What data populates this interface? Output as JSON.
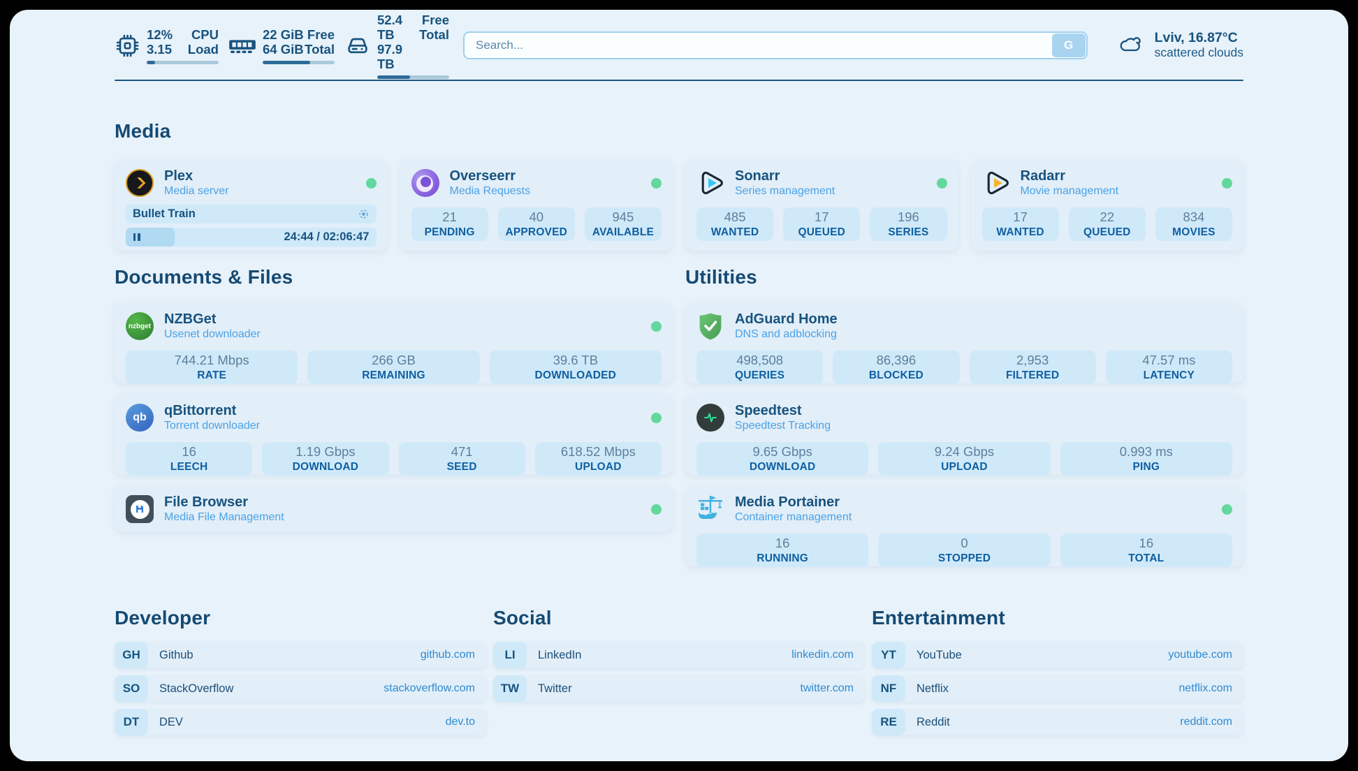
{
  "colors": {
    "navy": "#17537e",
    "subtitle_blue": "#4aa2e6",
    "link_blue": "#2f8ad0",
    "label_blue": "#0f5fa0",
    "status_online": "#62d89c",
    "tile_bg": "#cfe9f9",
    "card_bg": "#e2eef8",
    "page_bg": "#e8f2fa"
  },
  "topbar": {
    "cpu": {
      "icon": "cpu-chip-icon",
      "value1": "12%",
      "value2": "3.15",
      "label1": "CPU",
      "label2": "Load",
      "progress_pct": 12
    },
    "memory": {
      "icon": "ram-icon",
      "value1": "22 GiB",
      "value2": "64 GiB",
      "label1": "Free",
      "label2": "Total",
      "progress_pct": 66
    },
    "disk": {
      "icon": "disk-icon",
      "value1": "52.4 TB",
      "value2": "97.9 TB",
      "label1": "Free",
      "label2": "Total",
      "progress_pct": 46
    },
    "search": {
      "placeholder": "Search...",
      "button": "G"
    },
    "weather": {
      "icon": "cloud-icon",
      "location": "Lviv, 16.87°C",
      "condition": "scattered clouds"
    }
  },
  "media": {
    "heading": "Media",
    "plex": {
      "title": "Plex",
      "subtitle": "Media server",
      "online": true,
      "now_playing": {
        "title": "Bullet Train",
        "time": "24:44 / 02:06:47",
        "progress_pct": 19.5,
        "state": "paused"
      }
    },
    "overseerr": {
      "title": "Overseerr",
      "subtitle": "Media Requests",
      "online": true,
      "stats": [
        {
          "value": "21",
          "label": "PENDING"
        },
        {
          "value": "40",
          "label": "APPROVED"
        },
        {
          "value": "945",
          "label": "AVAILABLE"
        }
      ]
    },
    "sonarr": {
      "title": "Sonarr",
      "subtitle": "Series management",
      "online": true,
      "stats": [
        {
          "value": "485",
          "label": "WANTED"
        },
        {
          "value": "17",
          "label": "QUEUED"
        },
        {
          "value": "196",
          "label": "SERIES"
        }
      ]
    },
    "radarr": {
      "title": "Radarr",
      "subtitle": "Movie management",
      "online": true,
      "stats": [
        {
          "value": "17",
          "label": "WANTED"
        },
        {
          "value": "22",
          "label": "QUEUED"
        },
        {
          "value": "834",
          "label": "MOVIES"
        }
      ]
    }
  },
  "documents": {
    "heading": "Documents & Files",
    "nzbget": {
      "title": "NZBGet",
      "subtitle": "Usenet downloader",
      "icon_text": "nzbget",
      "online": true,
      "stats": [
        {
          "value": "744.21 Mbps",
          "label": "RATE"
        },
        {
          "value": "266 GB",
          "label": "REMAINING"
        },
        {
          "value": "39.6 TB",
          "label": "DOWNLOADED"
        }
      ]
    },
    "qbittorrent": {
      "title": "qBittorrent",
      "subtitle": "Torrent downloader",
      "icon_text": "qb",
      "online": true,
      "stats": [
        {
          "value": "16",
          "label": "LEECH"
        },
        {
          "value": "1.19 Gbps",
          "label": "DOWNLOAD"
        },
        {
          "value": "471",
          "label": "SEED"
        },
        {
          "value": "618.52 Mbps",
          "label": "UPLOAD"
        }
      ]
    },
    "filebrowser": {
      "title": "File Browser",
      "subtitle": "Media File Management",
      "online": true
    }
  },
  "utilities": {
    "heading": "Utilities",
    "adguard": {
      "title": "AdGuard Home",
      "subtitle": "DNS and adblocking",
      "stats": [
        {
          "value": "498,508",
          "label": "QUERIES"
        },
        {
          "value": "86,396",
          "label": "BLOCKED"
        },
        {
          "value": "2,953",
          "label": "FILTERED"
        },
        {
          "value": "47.57 ms",
          "label": "LATENCY"
        }
      ]
    },
    "speedtest": {
      "title": "Speedtest",
      "subtitle": "Speedtest Tracking",
      "stats": [
        {
          "value": "9.65 Gbps",
          "label": "DOWNLOAD"
        },
        {
          "value": "9.24 Gbps",
          "label": "UPLOAD"
        },
        {
          "value": "0.993 ms",
          "label": "PING"
        }
      ]
    },
    "portainer": {
      "title": "Media Portainer",
      "subtitle": "Container management",
      "online": true,
      "stats": [
        {
          "value": "16",
          "label": "RUNNING"
        },
        {
          "value": "0",
          "label": "STOPPED"
        },
        {
          "value": "16",
          "label": "TOTAL"
        }
      ]
    }
  },
  "bookmarks": {
    "developer": {
      "heading": "Developer",
      "items": [
        {
          "abbr": "GH",
          "name": "Github",
          "url": "github.com"
        },
        {
          "abbr": "SO",
          "name": "StackOverflow",
          "url": "stackoverflow.com"
        },
        {
          "abbr": "DT",
          "name": "DEV",
          "url": "dev.to"
        }
      ]
    },
    "social": {
      "heading": "Social",
      "items": [
        {
          "abbr": "LI",
          "name": "LinkedIn",
          "url": "linkedin.com"
        },
        {
          "abbr": "TW",
          "name": "Twitter",
          "url": "twitter.com"
        }
      ]
    },
    "entertainment": {
      "heading": "Entertainment",
      "items": [
        {
          "abbr": "YT",
          "name": "YouTube",
          "url": "youtube.com"
        },
        {
          "abbr": "NF",
          "name": "Netflix",
          "url": "netflix.com"
        },
        {
          "abbr": "RE",
          "name": "Reddit",
          "url": "reddit.com"
        }
      ]
    }
  }
}
